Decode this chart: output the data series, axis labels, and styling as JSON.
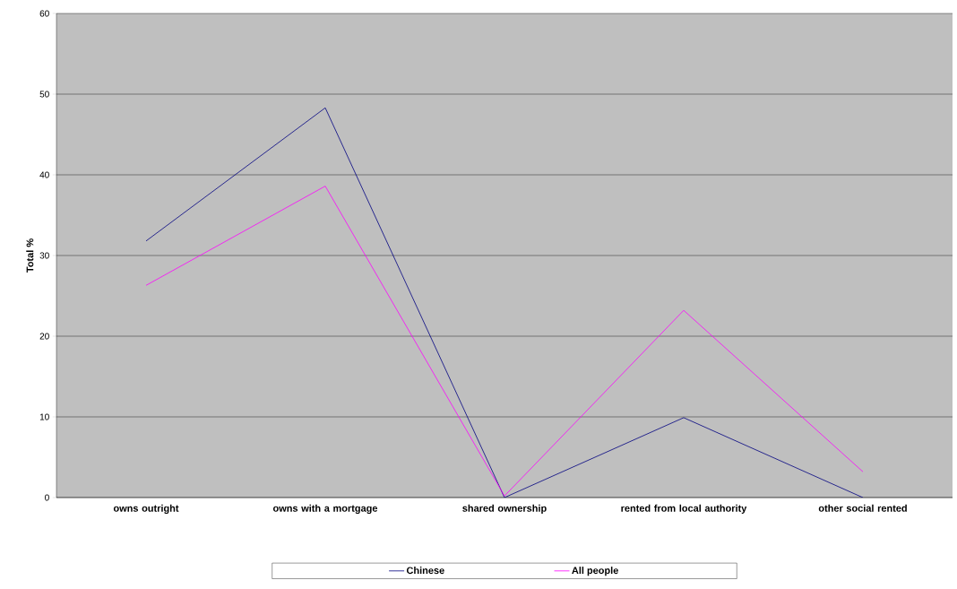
{
  "chart_data": {
    "type": "line",
    "ylabel": "Total %",
    "categories": [
      "owns outright",
      "owns with a mortgage",
      "shared ownership",
      "rented from local authority",
      "other social rented"
    ],
    "series": [
      {
        "name": "Chinese",
        "color": "#000080",
        "values": [
          31.8,
          48.3,
          0,
          9.9,
          0
        ]
      },
      {
        "name": "All people",
        "color": "#ff00ff",
        "values": [
          26.3,
          38.6,
          0.2,
          23.2,
          3.2
        ]
      }
    ],
    "ylim": [
      0,
      60
    ],
    "yticks": [
      0,
      10,
      20,
      30,
      40,
      50,
      60
    ],
    "grid": "y",
    "legend": "bottom",
    "marker": "none",
    "line_style": "solid"
  }
}
